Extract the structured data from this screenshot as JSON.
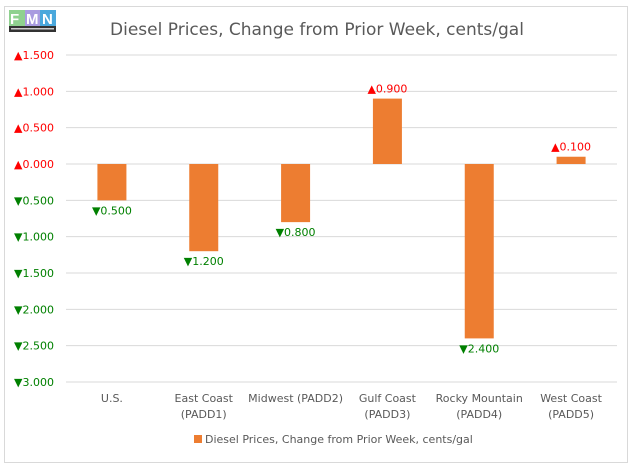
{
  "logo_text": "Fuels Market News",
  "chart_data": {
    "type": "bar",
    "title": "Diesel Prices, Change from Prior Week, cents/gal",
    "categories": [
      [
        "U.S."
      ],
      [
        "East Coast",
        "(PADD1)"
      ],
      [
        "Midwest (PADD2)"
      ],
      [
        "Gulf Coast",
        "(PADD3)"
      ],
      [
        "Rocky Mountain",
        "(PADD4)"
      ],
      [
        "West Coast",
        "(PADD5)"
      ]
    ],
    "series": [
      {
        "name": "Diesel Prices, Change from Prior Week, cents/gal",
        "values": [
          -0.5,
          -1.2,
          -0.8,
          0.9,
          -2.4,
          0.1
        ],
        "color": "#ED7D31"
      }
    ],
    "ylim": [
      -3.0,
      1.5
    ],
    "yticks": [
      1.5,
      1.0,
      0.5,
      0.0,
      -0.5,
      -1.0,
      -1.5,
      -2.0,
      -2.5,
      -3.0
    ],
    "grid": true,
    "legend": "bottom",
    "positive_color": "#FF0000",
    "negative_color": "#008000",
    "up_marker": "▲",
    "down_marker": "▼"
  }
}
